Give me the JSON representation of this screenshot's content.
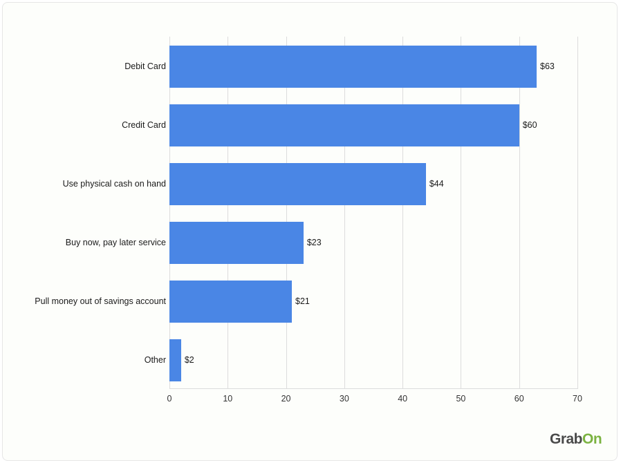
{
  "chart_data": {
    "type": "bar",
    "orientation": "horizontal",
    "title": "",
    "xlabel": "",
    "ylabel": "",
    "categories": [
      "Debit Card",
      "Credit Card",
      "Use physical cash on hand",
      "Buy now, pay later service",
      "Pull money out of savings account",
      "Other"
    ],
    "values": [
      63,
      60,
      44,
      23,
      21,
      2
    ],
    "value_labels": [
      "$63",
      "$60",
      "$44",
      "$23",
      "$21",
      "$2"
    ],
    "xlim": [
      0,
      70
    ],
    "xticks": [
      "0",
      "10",
      "20",
      "30",
      "40",
      "50",
      "60",
      "70"
    ],
    "grid": true,
    "legend": null,
    "bar_color": "#4a86e5"
  },
  "branding": {
    "logo_left": "Grab",
    "logo_right": "On",
    "logo_left_color": "#4a4a4a",
    "logo_right_color": "#7cb342"
  }
}
